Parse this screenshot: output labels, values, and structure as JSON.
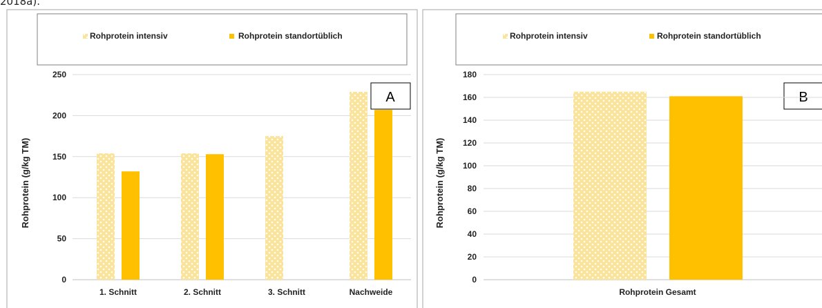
{
  "caption_fragment": "2018a).",
  "colors": {
    "intensiv": "#fbe39a",
    "intensiv_pattern": "#ffffff",
    "standard": "#ffc000",
    "grid": "#d9d9d9",
    "frame": "#a6a6a6"
  },
  "chart_data": [
    {
      "type": "bar",
      "panel_label": "A",
      "categories": [
        "1. Schnitt",
        "2. Schnitt",
        "3. Schnitt",
        "Nachweide"
      ],
      "series": [
        {
          "name": "Rohprotein intensiv",
          "values": [
            154,
            154,
            175,
            229
          ]
        },
        {
          "name": "Rohprotein standortüblich",
          "values": [
            132,
            153,
            null,
            207
          ]
        }
      ],
      "ylabel": "Rohprotein (g/kg TM)",
      "ylim": [
        0,
        250
      ],
      "yticks": [
        "0",
        "50",
        "100",
        "150",
        "200",
        "250"
      ],
      "grid": true,
      "legend": "top"
    },
    {
      "type": "bar",
      "panel_label": "B",
      "categories": [
        "Rohprotein Gesamt"
      ],
      "series": [
        {
          "name": "Rohprotein intensiv",
          "values": [
            165
          ]
        },
        {
          "name": "Rohprotein standortüblich",
          "values": [
            161
          ]
        }
      ],
      "ylabel": "Rohprotein (g/kg TM)",
      "ylim": [
        0,
        180
      ],
      "yticks": [
        "0",
        "20",
        "40",
        "60",
        "80",
        "100",
        "120",
        "140",
        "160",
        "180"
      ],
      "grid": true,
      "legend": "top"
    }
  ]
}
